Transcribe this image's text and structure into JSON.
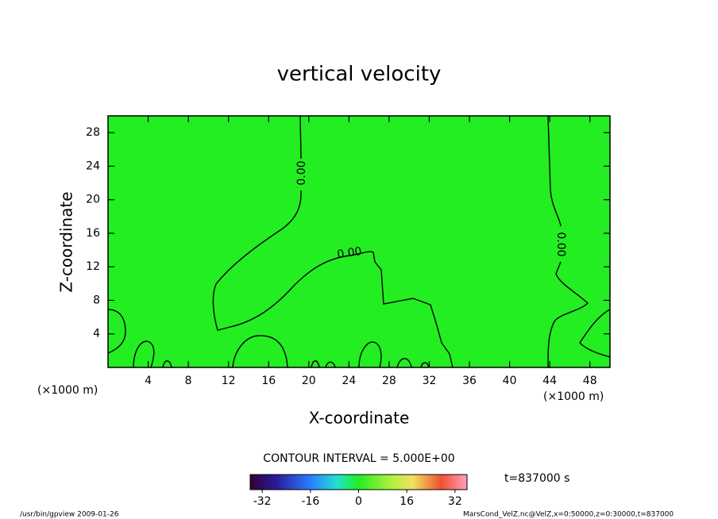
{
  "chart_data": {
    "type": "contour",
    "title": "vertical velocity",
    "x_label": "X-coordinate",
    "y_label": "Z-coordinate",
    "x_unit": "(×1000 m)",
    "y_unit": "(×1000 m)",
    "xlim": [
      0,
      50
    ],
    "xticks": [
      4,
      8,
      12,
      16,
      20,
      24,
      28,
      32,
      36,
      40,
      44,
      48
    ],
    "ylim": [
      0,
      30
    ],
    "yticks": [
      4,
      8,
      12,
      16,
      20,
      24,
      28
    ],
    "levels": [
      0
    ],
    "level_labels": [
      "0.00"
    ],
    "contour_interval_text": "CONTOUR INTERVAL = 5.000E+00",
    "time_text": "t=837000 s",
    "clim": [
      -36,
      36
    ],
    "colorbar_ticks": [
      -32,
      -16,
      0,
      16,
      32
    ],
    "field_color": "#22ee22",
    "footer_left": "/usr/bin/gpview  2009-01-26",
    "footer_right": "MarsCond_VelZ.nc@VelZ,x=0:50000,z=0:30000,t=837000"
  }
}
